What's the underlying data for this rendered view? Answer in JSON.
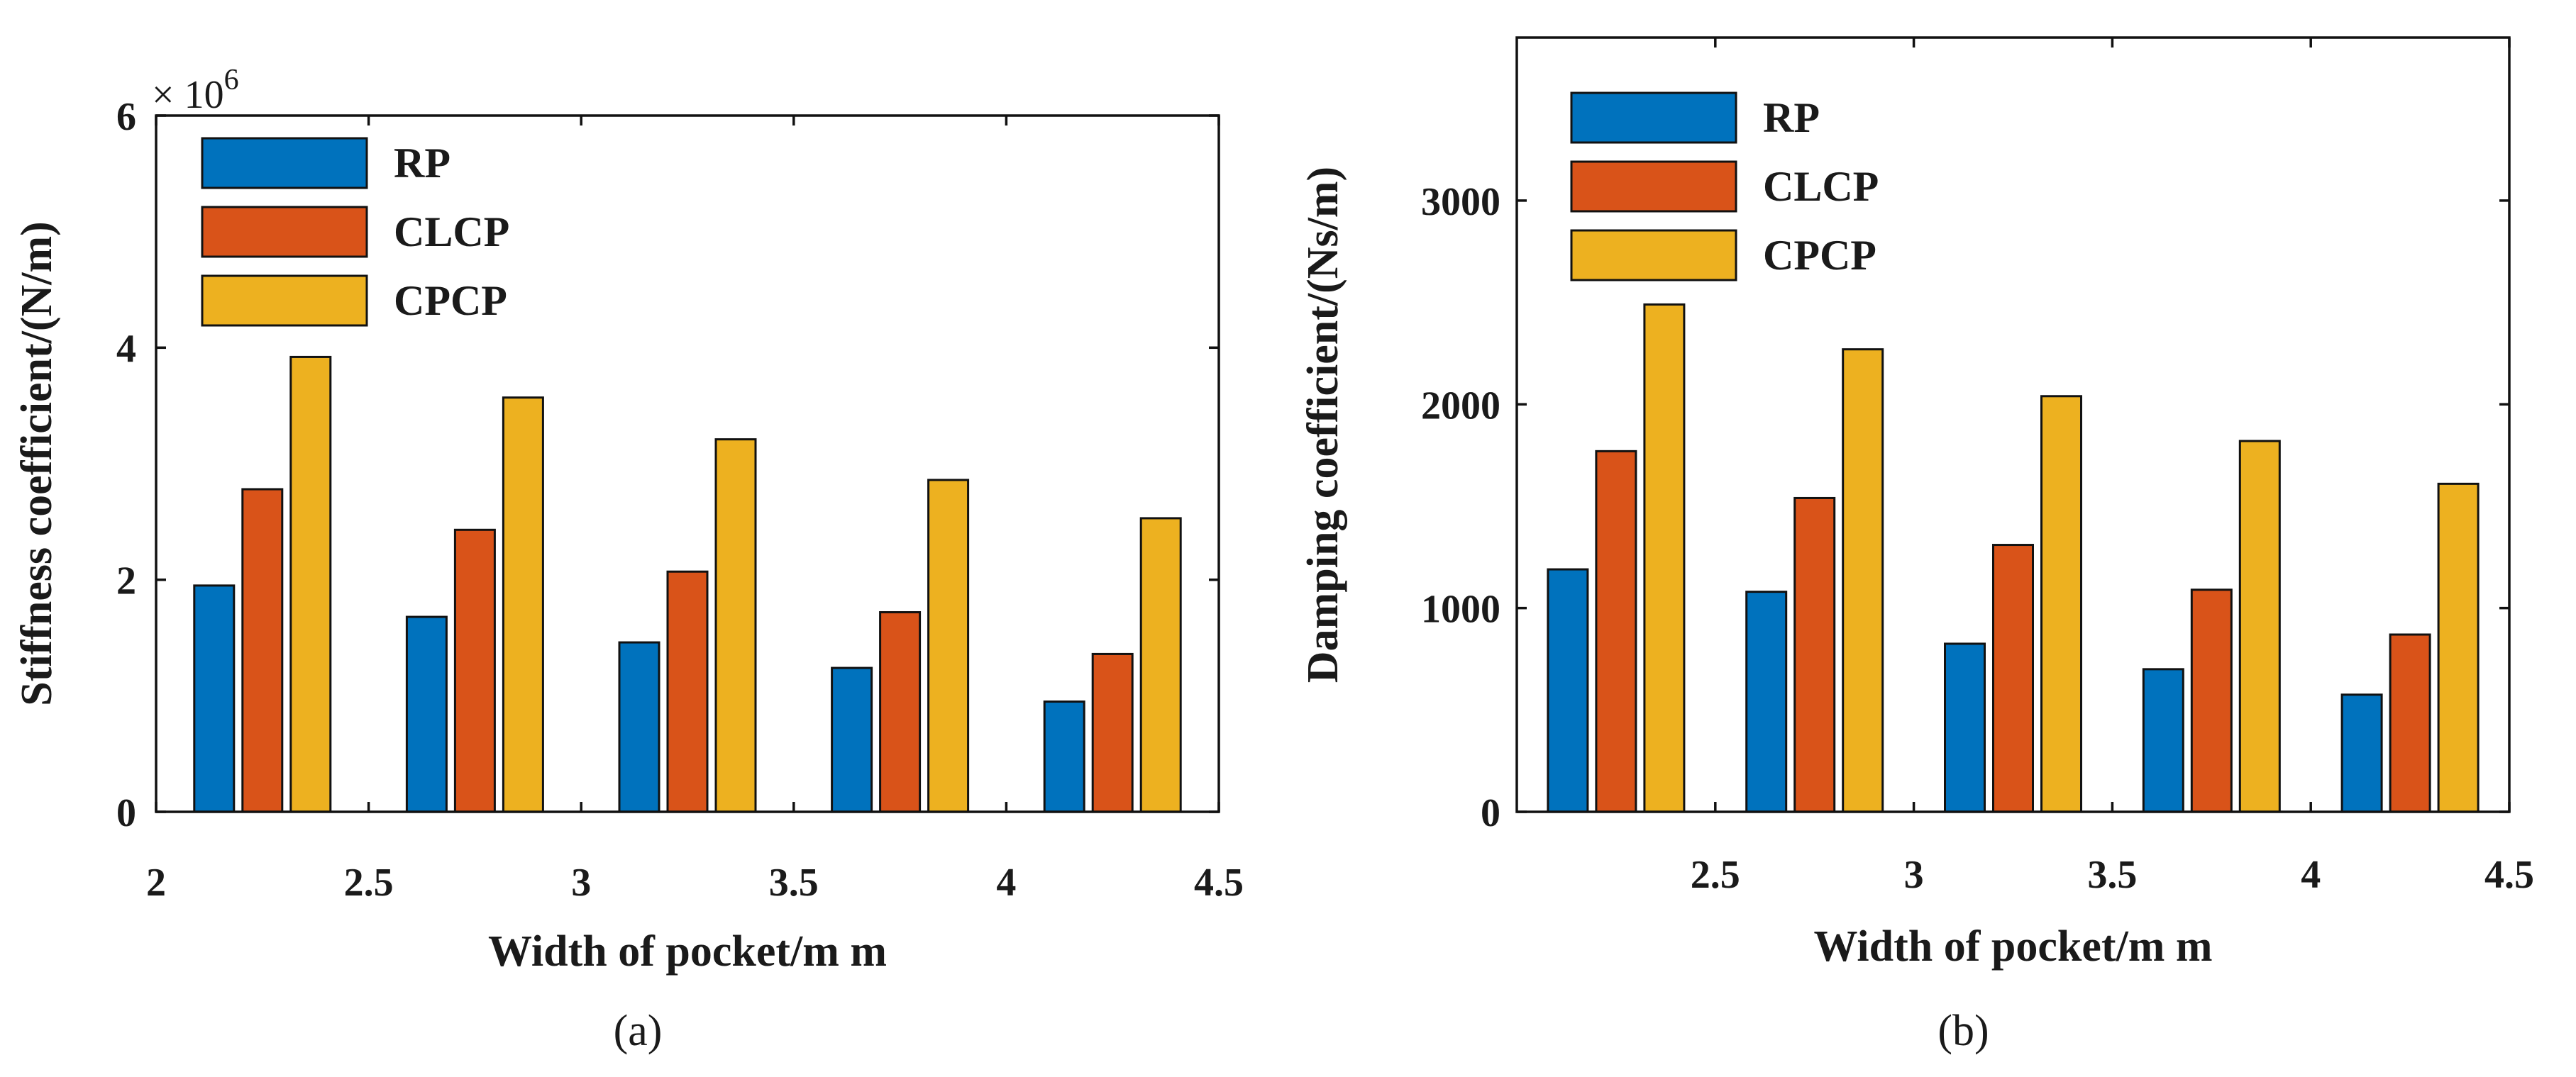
{
  "chart_data": [
    {
      "type": "bar",
      "panel_label": "(a)",
      "xlabel": "Width of pocket/m m",
      "ylabel": "Stiffness coefficient/(N/m)",
      "y_exponent_base": "× 10",
      "y_exponent_power": "6",
      "xlim": [
        2,
        4.5
      ],
      "ylim": [
        0,
        6
      ],
      "x_ticks": [
        2,
        2.5,
        3,
        3.5,
        4,
        4.5
      ],
      "x_tick_labels": [
        "2",
        "2.5",
        "3",
        "3.5",
        "4",
        "4.5"
      ],
      "y_ticks": [
        0,
        2,
        4,
        6
      ],
      "y_tick_labels": [
        "0",
        "2",
        "4",
        "6"
      ],
      "grid": false,
      "legend_position": "top-left",
      "categories": [
        2.25,
        2.75,
        3.25,
        3.75,
        4.25
      ],
      "series": [
        {
          "name": "RP",
          "color": "#0072BD",
          "values": [
            1.95,
            1.68,
            1.46,
            1.24,
            0.95
          ]
        },
        {
          "name": "CLCP",
          "color": "#D95319",
          "values": [
            2.78,
            2.43,
            2.07,
            1.72,
            1.36
          ]
        },
        {
          "name": "CPCP",
          "color": "#EDB120",
          "values": [
            3.92,
            3.57,
            3.21,
            2.86,
            2.53
          ]
        }
      ]
    },
    {
      "type": "bar",
      "panel_label": "(b)",
      "xlabel": "Width of pocket/m m",
      "ylabel": "Damping coefficient/(Ns/m)",
      "xlim": [
        2.0,
        4.5
      ],
      "ylim": [
        0,
        3800
      ],
      "x_ticks": [
        2.5,
        3,
        3.5,
        4,
        4.5
      ],
      "x_tick_labels": [
        "2.5",
        "3",
        "3.5",
        "4",
        "4.5"
      ],
      "y_ticks": [
        0,
        1000,
        2000,
        3000
      ],
      "y_tick_labels": [
        "0",
        "1000",
        "2000",
        "3000"
      ],
      "grid": false,
      "legend_position": "top-left",
      "categories": [
        2.25,
        2.75,
        3.25,
        3.75,
        4.25
      ],
      "series": [
        {
          "name": "RP",
          "color": "#0072BD",
          "values": [
            1190,
            1080,
            825,
            700,
            575
          ]
        },
        {
          "name": "CLCP",
          "color": "#D95319",
          "values": [
            1770,
            1540,
            1310,
            1090,
            870
          ]
        },
        {
          "name": "CPCP",
          "color": "#EDB120",
          "values": [
            2490,
            2270,
            2040,
            1820,
            1610
          ]
        }
      ]
    }
  ]
}
